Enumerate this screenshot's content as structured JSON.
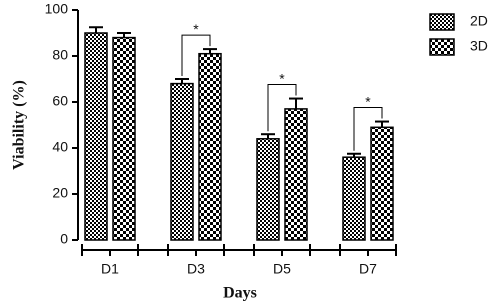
{
  "chart_data": {
    "type": "bar",
    "y_label": "Viability (%)",
    "x_label": "Days",
    "categories": [
      "D1",
      "D3",
      "D5",
      "D7"
    ],
    "series": [
      {
        "name": "2D",
        "color": "#000000",
        "values": [
          90,
          68,
          44,
          36
        ],
        "errors": [
          2.5,
          2,
          2,
          1.5
        ]
      },
      {
        "name": "3D",
        "color": "#000000",
        "values": [
          88,
          81,
          57,
          49
        ],
        "errors": [
          2,
          2,
          4.5,
          2.5
        ]
      }
    ],
    "significance": [
      null,
      "*",
      "*",
      "*"
    ],
    "ylim": [
      0,
      100
    ],
    "yticks": [
      0,
      20,
      40,
      60,
      80,
      100
    ],
    "legend": "top-right"
  }
}
